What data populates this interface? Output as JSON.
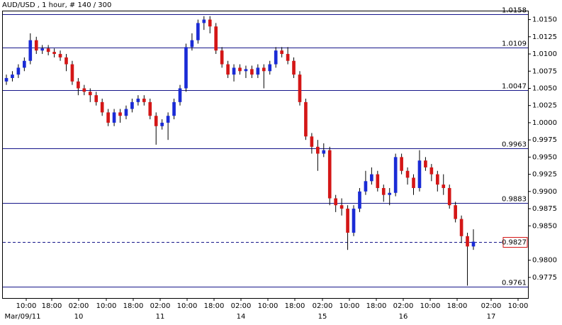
{
  "chart_data": {
    "type": "candlestick",
    "title": "AUD/USD , 1 hour, # 140 / 300",
    "up_color": "#1a2bd6",
    "down_color": "#d41616",
    "level_color": "#16168a",
    "ylim": [
      0.9745,
      1.0163
    ],
    "yticks": [
      {
        "value": 1.015,
        "label": "1.0150"
      },
      1.0125,
      {
        "value": 1.01,
        "label": "1.0100"
      },
      1.0075,
      {
        "value": 1.005,
        "label": "1.0050"
      },
      1.0025,
      {
        "value": 1,
        "label": "1.0000"
      },
      0.9975,
      {
        "value": 0.995,
        "label": "0.9950"
      },
      0.9925,
      {
        "value": 0.99,
        "label": "0.9900"
      },
      0.9875,
      {
        "value": 0.985,
        "label": "0.9850"
      },
      {
        "value": 0.98,
        "label": "0.9800"
      },
      0.9775
    ],
    "levels": [
      1.0158,
      1.0109,
      1.0047,
      0.9963,
      0.9883,
      0.9761
    ],
    "current_price": 0.9827,
    "x_labels": [
      "10:00",
      "18:00",
      "02:00",
      "10:00",
      "18:00",
      "02:00",
      "10:00",
      "18:00",
      "02:00",
      "10:00",
      "18:00",
      "02:00",
      "10:00",
      "18:00",
      "02:00",
      "10:00",
      "18:00",
      "02:00",
      "10:00"
    ],
    "date_labels": [
      "Mar/09/11",
      "10",
      "11",
      "14",
      "15",
      "16",
      "17"
    ],
    "open": [
      1.006,
      1.0065,
      1.007,
      1.008,
      1.009,
      1.012,
      1.0105,
      1.0108,
      1.0103,
      1.01,
      1.0095,
      1.0085,
      1.006,
      1.005,
      1.0045,
      1.004,
      1.003,
      1.0015,
      1.0,
      1.0015,
      1.001,
      1.002,
      1.003,
      1.0035,
      1.003,
      1.001,
      0.9995,
      1.0,
      1.001,
      1.003,
      1.005,
      1.011,
      1.012,
      1.0145,
      1.015,
      1.014,
      1.0105,
      1.0085,
      1.007,
      1.008,
      1.0075,
      1.0078,
      1.007,
      1.008,
      1.0075,
      1.0085,
      1.0105,
      1.01,
      1.009,
      1.007,
      1.003,
      0.998,
      0.9965,
      0.9955,
      0.996,
      0.989,
      0.988,
      0.9875,
      0.984,
      0.9875,
      0.99,
      0.9915,
      0.9925,
      0.9905,
      0.9895,
      0.9898,
      0.995,
      0.993,
      0.992,
      0.9905,
      0.9945,
      0.9935,
      0.9925,
      0.991,
      0.9905,
      0.988,
      0.986,
      0.9835,
      0.982
    ],
    "high": [
      1.007,
      1.0075,
      1.0085,
      1.0095,
      1.013,
      1.0125,
      1.0113,
      1.0113,
      1.0108,
      1.0105,
      1.01,
      1.009,
      1.0065,
      1.0055,
      1.005,
      1.0045,
      1.0035,
      1.002,
      1.002,
      1.002,
      1.0025,
      1.0035,
      1.004,
      1.004,
      1.0035,
      1.0015,
      1.0005,
      1.0015,
      1.0035,
      1.0055,
      1.0115,
      1.013,
      1.015,
      1.0155,
      1.0155,
      1.0145,
      1.011,
      1.009,
      1.0085,
      1.0085,
      1.0083,
      1.0083,
      1.0085,
      1.0085,
      1.009,
      1.011,
      1.011,
      1.011,
      1.0095,
      1.0075,
      1.0035,
      0.9985,
      0.9975,
      0.997,
      0.9965,
      0.9895,
      0.989,
      0.988,
      0.988,
      0.9905,
      0.993,
      0.9935,
      0.993,
      0.991,
      0.9905,
      0.9955,
      0.9955,
      0.9935,
      0.9925,
      0.996,
      0.995,
      0.994,
      0.993,
      0.9925,
      0.991,
      0.9885,
      0.9865,
      0.984,
      0.9845
    ],
    "low": [
      1.0055,
      1.006,
      1.0065,
      1.0075,
      1.0085,
      1.01,
      1.01,
      1.0098,
      1.0095,
      1.009,
      1.0075,
      1.0055,
      1.004,
      1.004,
      1.003,
      1.0025,
      1.001,
      0.9995,
      0.9995,
      1.0,
      1.0005,
      1.0015,
      1.0025,
      1.0025,
      1.0005,
      0.9968,
      0.999,
      0.9975,
      1.0005,
      1.0025,
      1.0045,
      1.0105,
      1.0115,
      1.0135,
      1.013,
      1.01,
      1.008,
      1.0065,
      1.006,
      1.007,
      1.0065,
      1.0065,
      1.0065,
      1.005,
      1.007,
      1.008,
      1.0095,
      1.0085,
      1.0065,
      1.0025,
      0.9975,
      0.9955,
      0.993,
      0.995,
      0.988,
      0.987,
      0.9865,
      0.9815,
      0.9835,
      0.987,
      0.9895,
      0.991,
      0.99,
      0.9885,
      0.988,
      0.9893,
      0.9925,
      0.991,
      0.9895,
      0.99,
      0.993,
      0.9915,
      0.99,
      0.9895,
      0.9875,
      0.9855,
      0.9825,
      0.9763,
      0.9815
    ],
    "close": [
      1.0065,
      1.007,
      1.008,
      1.009,
      1.012,
      1.0105,
      1.0108,
      1.0103,
      1.01,
      1.0095,
      1.0085,
      1.006,
      1.005,
      1.0045,
      1.004,
      1.003,
      1.0015,
      1.0,
      1.0015,
      1.001,
      1.002,
      1.003,
      1.0035,
      1.003,
      1.001,
      0.9995,
      1.0,
      1.001,
      1.003,
      1.005,
      1.011,
      1.012,
      1.0145,
      1.015,
      1.014,
      1.0105,
      1.0085,
      1.007,
      1.008,
      1.0075,
      1.0078,
      1.007,
      1.008,
      1.0075,
      1.0085,
      1.0105,
      1.01,
      1.009,
      1.007,
      1.003,
      0.998,
      0.9965,
      0.9955,
      0.996,
      0.989,
      0.988,
      0.9875,
      0.984,
      0.9875,
      0.99,
      0.9915,
      0.9925,
      0.9905,
      0.9895,
      0.9898,
      0.995,
      0.993,
      0.992,
      0.9905,
      0.9945,
      0.9935,
      0.9925,
      0.991,
      0.9905,
      0.988,
      0.986,
      0.9835,
      0.982,
      0.9827
    ]
  }
}
